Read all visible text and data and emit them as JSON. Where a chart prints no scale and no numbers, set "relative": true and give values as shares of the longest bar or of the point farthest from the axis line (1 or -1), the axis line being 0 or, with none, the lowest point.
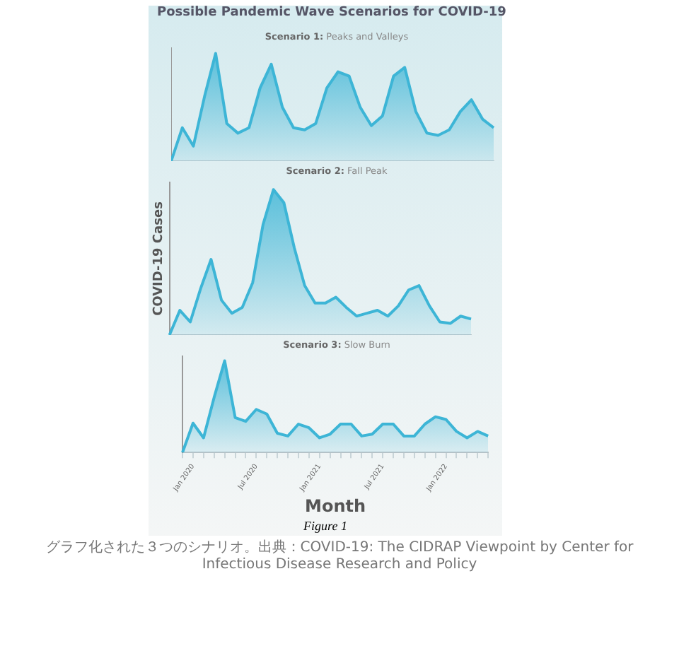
{
  "chart_data": [
    {
      "type": "area",
      "title": "Possible Pandemic Wave Scenarios for COVID-19",
      "subtitle": "Scenario 1: Peaks and Valleys",
      "relative": true,
      "tick_labels": false,
      "grid": false,
      "legend": false,
      "marker": "none",
      "categories": [
        null,
        null,
        null,
        null,
        null,
        null,
        null,
        null,
        null,
        null,
        null,
        null,
        null,
        null,
        null,
        null,
        null,
        null,
        null,
        null,
        null,
        null,
        null,
        null,
        null,
        null,
        null,
        null,
        null,
        null
      ],
      "series": [
        {
          "color": "#3db5d6",
          "values": [
            0,
            0.31,
            0.14,
            0.6,
            1,
            0.35,
            0.26,
            0.31,
            0.68,
            0.9,
            0.5,
            0.31,
            0.29,
            0.35,
            0.68,
            0.83,
            0.79,
            0.5,
            0.33,
            0.42,
            0.79,
            0.87,
            0.46,
            0.26,
            0.24,
            0.29,
            0.46,
            0.57,
            0.39,
            0.31
          ]
        }
      ]
    },
    {
      "type": "area",
      "subtitle": "Scenario 2: Fall Peak",
      "ylabel": "COVID-19 Cases",
      "relative": true,
      "tick_labels": false,
      "grid": false,
      "legend": false,
      "marker": "none",
      "categories": [
        null,
        null,
        null,
        null,
        null,
        null,
        null,
        null,
        null,
        null,
        null,
        null,
        null,
        null,
        null,
        null,
        null,
        null,
        null,
        null,
        null,
        null,
        null,
        null,
        null,
        null,
        null,
        null,
        null,
        null
      ],
      "series": [
        {
          "color": "#3db5d6",
          "values": [
            0,
            0.17,
            0.09,
            0.32,
            0.52,
            0.24,
            0.15,
            0.19,
            0.36,
            0.76,
            1,
            0.91,
            0.6,
            0.34,
            0.22,
            0.22,
            0.26,
            0.19,
            0.13,
            0.15,
            0.17,
            0.13,
            0.2,
            0.31,
            0.34,
            0.2,
            0.09,
            0.08,
            0.13,
            0.11
          ]
        }
      ]
    },
    {
      "type": "area",
      "subtitle": "Scenario 3: Slow Burn",
      "xlabel": "Month",
      "relative": true,
      "tick_labels": "x",
      "grid": false,
      "legend": false,
      "marker": "none",
      "categories": [
        null,
        "Jan 2020",
        null,
        null,
        null,
        null,
        null,
        "Jul 2020",
        null,
        null,
        null,
        null,
        null,
        "Jan 2021",
        null,
        null,
        null,
        null,
        null,
        "Jul 2021",
        null,
        null,
        null,
        null,
        null,
        "Jan 2022",
        null,
        null,
        null,
        null
      ],
      "series": [
        {
          "color": "#3db5d6",
          "values": [
            0,
            0.32,
            0.16,
            0.6,
            1,
            0.38,
            0.34,
            0.47,
            0.42,
            0.21,
            0.18,
            0.31,
            0.27,
            0.16,
            0.2,
            0.31,
            0.31,
            0.18,
            0.2,
            0.31,
            0.31,
            0.18,
            0.18,
            0.31,
            0.39,
            0.36,
            0.23,
            0.16,
            0.23,
            0.18
          ]
        }
      ],
      "annotations": [
        "Figure 1",
        "グラフ化された３つのシナリオ。出典：COVID-19: The CIDRAP Viewpoint by Center for Infectious Disease Research and Policy"
      ]
    }
  ]
}
